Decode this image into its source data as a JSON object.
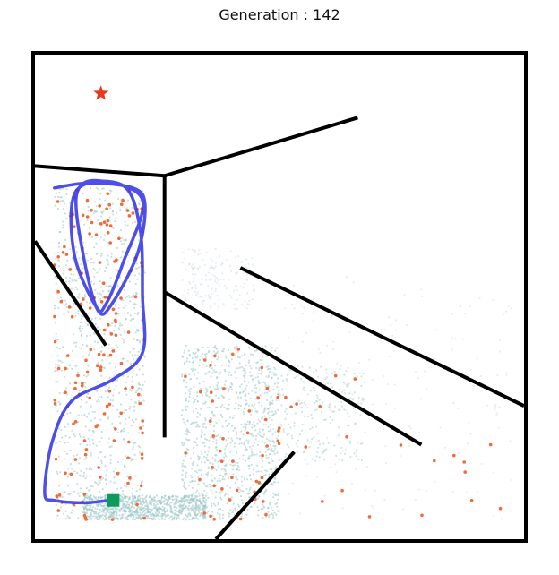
{
  "title": "Generation : 142",
  "chart_data": {
    "type": "scatter",
    "title": "Generation : 142",
    "xlim": [
      0,
      200
    ],
    "ylim": [
      0,
      200
    ],
    "grid": false,
    "maze_walls": [
      [
        [
          0,
          154
        ],
        [
          53,
          150
        ]
      ],
      [
        [
          53,
          150
        ],
        [
          53,
          42
        ]
      ],
      [
        [
          53,
          150
        ],
        [
          132,
          174
        ]
      ],
      [
        [
          0,
          123
        ],
        [
          29,
          80
        ]
      ],
      [
        [
          84,
          112
        ],
        [
          200,
          55
        ]
      ],
      [
        [
          53,
          102
        ],
        [
          158,
          39
        ]
      ],
      [
        [
          106,
          36
        ],
        [
          74,
          0
        ]
      ]
    ],
    "goal": {
      "x": 27,
      "y": 184,
      "color": "#e8381e",
      "marker": "star"
    },
    "start": {
      "x": 32,
      "y": 16,
      "color": "#0e9b5a",
      "marker": "square"
    },
    "trajectory": {
      "color": "#3b3be8",
      "points": [
        [
          8,
          145
        ],
        [
          22,
          147
        ],
        [
          40,
          145
        ],
        [
          45,
          138
        ],
        [
          42,
          118
        ],
        [
          32,
          98
        ],
        [
          26,
          94
        ],
        [
          20,
          116
        ],
        [
          17,
          142
        ],
        [
          26,
          148
        ],
        [
          44,
          140
        ],
        [
          36,
          114
        ],
        [
          29,
          97
        ],
        [
          25,
          96
        ],
        [
          16,
          118
        ],
        [
          17,
          144
        ],
        [
          36,
          146
        ],
        [
          43,
          128
        ],
        [
          44,
          100
        ],
        [
          44,
          77
        ],
        [
          32,
          66
        ],
        [
          15,
          57
        ],
        [
          7,
          40
        ],
        [
          4,
          19
        ],
        [
          8,
          16
        ],
        [
          20,
          15
        ],
        [
          30,
          16
        ]
      ]
    },
    "explored_density": {
      "dense_color": "#9cc6c6",
      "sparse_color": "#b9cfd9",
      "regions": [
        {
          "x": [
            8,
            45
          ],
          "y": [
            8,
            145
          ],
          "density": "high"
        },
        {
          "x": [
            60,
            100
          ],
          "y": [
            8,
            80
          ],
          "density": "high"
        },
        {
          "x": [
            20,
            70
          ],
          "y": [
            8,
            18
          ],
          "density": "high"
        },
        {
          "x": [
            85,
            135
          ],
          "y": [
            32,
            72
          ],
          "density": "medium"
        },
        {
          "x": [
            100,
            195
          ],
          "y": [
            8,
            110
          ],
          "density": "low"
        },
        {
          "x": [
            60,
            90
          ],
          "y": [
            95,
            120
          ],
          "density": "low"
        }
      ]
    },
    "elites": {
      "color": "#f26a36",
      "regions": [
        {
          "x": [
            8,
            45
          ],
          "y": [
            8,
            145
          ],
          "count": 150
        },
        {
          "x": [
            60,
            100
          ],
          "y": [
            8,
            80
          ],
          "count": 45
        },
        {
          "x": [
            85,
            135
          ],
          "y": [
            32,
            72
          ],
          "count": 12
        },
        {
          "x": [
            110,
            195
          ],
          "y": [
            8,
            40
          ],
          "count": 12
        }
      ]
    }
  }
}
